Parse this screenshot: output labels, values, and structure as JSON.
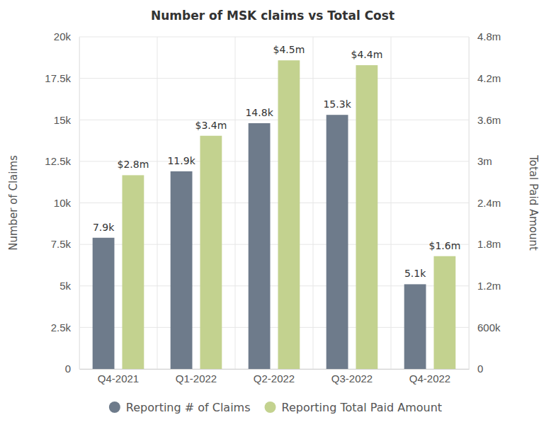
{
  "chart_data": {
    "type": "bar",
    "title": "Number of MSK claims vs Total Cost",
    "y_label": "Number of Claims",
    "y2_label": "Total Paid Amount",
    "categories": [
      "Q4-2021",
      "Q1-2022",
      "Q2-2022",
      "Q3-2022",
      "Q4-2022"
    ],
    "series": [
      {
        "name": "Reporting # of Claims",
        "color": "#6e7b8b",
        "values": [
          7900,
          11900,
          14800,
          15300,
          5100
        ],
        "value_labels": [
          "7.9k",
          "11.9k",
          "14.8k",
          "15.3k",
          "5.1k"
        ]
      },
      {
        "name": "Reporting Total Paid Amount",
        "color": "#c3d28f",
        "axis": "y2",
        "values": [
          2800000,
          3370000,
          4460000,
          4390000,
          1630000
        ],
        "value_labels": [
          "$2.8m",
          "$3.4m",
          "$4.5m",
          "$4.4m",
          "$1.6m"
        ]
      }
    ],
    "ylim": [
      0,
      20000
    ],
    "yticks": [
      0,
      {
        "value": 2500,
        "label": "2.5k"
      },
      {
        "value": 5000,
        "label": "5k"
      },
      {
        "value": 7500,
        "label": "7.5k"
      },
      {
        "value": 10000,
        "label": "10k"
      },
      {
        "value": 12500,
        "label": "12.5k"
      },
      {
        "value": 15000,
        "label": "15k"
      },
      {
        "value": 17500,
        "label": "17.5k"
      },
      {
        "value": 20000,
        "label": "20k"
      }
    ],
    "y2lim": [
      0,
      4800000
    ],
    "y2ticks": [
      0,
      {
        "value": 600000,
        "label": "600k"
      },
      {
        "value": 1200000,
        "label": "1.2m"
      },
      {
        "value": 1800000,
        "label": "1.8m"
      },
      {
        "value": 2400000,
        "label": "2.4m"
      },
      {
        "value": 3000000,
        "label": "3m"
      },
      {
        "value": 3600000,
        "label": "3.6m"
      },
      {
        "value": 4200000,
        "label": "4.2m"
      },
      {
        "value": 4800000,
        "label": "4.8m"
      }
    ],
    "grid": true,
    "data_labels": true,
    "legend": "bottom"
  }
}
